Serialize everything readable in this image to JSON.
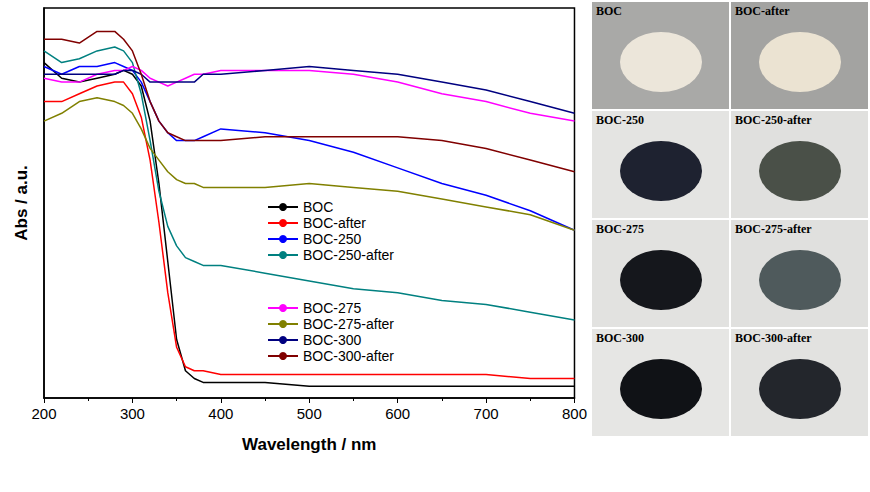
{
  "chart_data": {
    "type": "line",
    "x_label": "Wavelength / nm",
    "y_label": "Abs / a.u.",
    "x": [
      200,
      220,
      240,
      260,
      280,
      290,
      300,
      310,
      320,
      330,
      340,
      350,
      360,
      370,
      380,
      400,
      450,
      500,
      550,
      600,
      650,
      700,
      750,
      800
    ],
    "series": [
      {
        "name": "BOC",
        "color": "#000000",
        "values": [
          0.86,
          0.82,
          0.81,
          0.82,
          0.83,
          0.84,
          0.83,
          0.8,
          0.71,
          0.55,
          0.35,
          0.15,
          0.07,
          0.05,
          0.04,
          0.04,
          0.04,
          0.03,
          0.03,
          0.03,
          0.03,
          0.03,
          0.03,
          0.03
        ]
      },
      {
        "name": "BOC-after",
        "color": "#ff0000",
        "values": [
          0.76,
          0.76,
          0.78,
          0.8,
          0.81,
          0.81,
          0.78,
          0.72,
          0.61,
          0.45,
          0.27,
          0.13,
          0.08,
          0.07,
          0.07,
          0.06,
          0.06,
          0.06,
          0.06,
          0.06,
          0.06,
          0.06,
          0.05,
          0.05
        ]
      },
      {
        "name": "BOC-250",
        "color": "#0000ff",
        "values": [
          0.85,
          0.83,
          0.85,
          0.85,
          0.86,
          0.85,
          0.84,
          0.81,
          0.76,
          0.71,
          0.68,
          0.66,
          0.66,
          0.66,
          0.67,
          0.69,
          0.68,
          0.66,
          0.63,
          0.59,
          0.55,
          0.52,
          0.48,
          0.43
        ]
      },
      {
        "name": "BOC-250-after",
        "color": "#008080",
        "values": [
          0.89,
          0.86,
          0.87,
          0.89,
          0.9,
          0.89,
          0.86,
          0.78,
          0.66,
          0.53,
          0.44,
          0.39,
          0.36,
          0.35,
          0.34,
          0.34,
          0.32,
          0.3,
          0.28,
          0.27,
          0.25,
          0.24,
          0.22,
          0.2
        ]
      },
      {
        "name": "BOC-275",
        "color": "#ff00ff",
        "values": [
          0.82,
          0.81,
          0.81,
          0.83,
          0.84,
          0.84,
          0.85,
          0.84,
          0.82,
          0.81,
          0.8,
          0.81,
          0.82,
          0.83,
          0.83,
          0.84,
          0.84,
          0.84,
          0.83,
          0.81,
          0.78,
          0.76,
          0.73,
          0.71
        ]
      },
      {
        "name": "BOC-275-after",
        "color": "#808000",
        "values": [
          0.71,
          0.73,
          0.76,
          0.77,
          0.76,
          0.75,
          0.73,
          0.69,
          0.64,
          0.61,
          0.58,
          0.56,
          0.55,
          0.55,
          0.54,
          0.54,
          0.54,
          0.55,
          0.54,
          0.53,
          0.51,
          0.49,
          0.47,
          0.43
        ]
      },
      {
        "name": "BOC-300",
        "color": "#000080",
        "values": [
          0.83,
          0.83,
          0.83,
          0.83,
          0.83,
          0.84,
          0.84,
          0.83,
          0.81,
          0.81,
          0.81,
          0.81,
          0.81,
          0.81,
          0.83,
          0.83,
          0.84,
          0.85,
          0.84,
          0.83,
          0.81,
          0.79,
          0.76,
          0.73
        ]
      },
      {
        "name": "BOC-300-after",
        "color": "#800000",
        "values": [
          0.92,
          0.92,
          0.91,
          0.94,
          0.94,
          0.92,
          0.89,
          0.83,
          0.76,
          0.71,
          0.68,
          0.67,
          0.66,
          0.66,
          0.66,
          0.66,
          0.67,
          0.67,
          0.67,
          0.67,
          0.66,
          0.64,
          0.61,
          0.58
        ]
      }
    ],
    "xlim": [
      200,
      800
    ],
    "xticks": [
      200,
      300,
      400,
      500,
      600,
      700,
      800
    ],
    "ylim": [
      0,
      1
    ],
    "yticks": [],
    "tick_labels": "x",
    "grid": false,
    "legend": "center"
  },
  "photos": [
    [
      "BOC",
      "BOC-after"
    ],
    [
      "BOC-250",
      "BOC-250-after"
    ],
    [
      "BOC-275",
      "BOC-275-after"
    ],
    [
      "BOC-300",
      "BOC-300-after"
    ]
  ]
}
